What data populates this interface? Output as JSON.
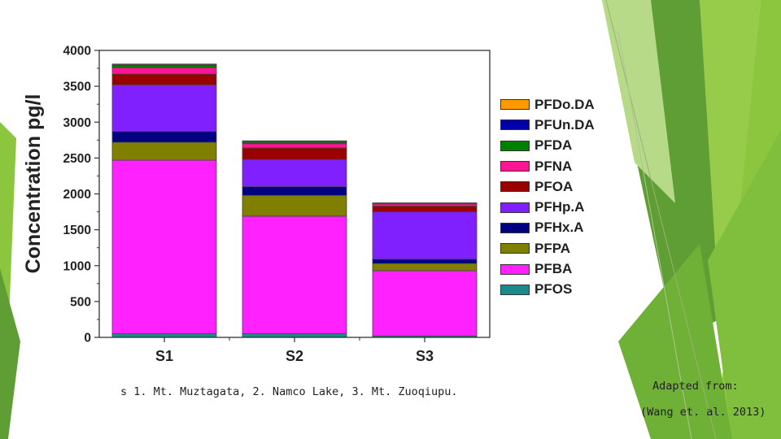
{
  "caption": "s 1. Mt. Muztagata, 2. Namco Lake, 3. Mt. Zuoqiupu.",
  "credit": {
    "label": "Adapted from:",
    "citation": "(Wang et. al. 2013)"
  },
  "colors": {
    "green_dark": "#5e9a2e",
    "green_mid": "#7dba3a",
    "green_light": "#a9d36a"
  },
  "chart_data": {
    "type": "bar",
    "stacked": true,
    "title": "",
    "xlabel": "",
    "ylabel": "Concentration pg/l",
    "ylim": [
      0,
      4000
    ],
    "yticks": [
      0,
      500,
      1000,
      1500,
      2000,
      2500,
      3000,
      3500,
      4000
    ],
    "grid": false,
    "legend_position": "right",
    "categories": [
      "S1",
      "S2",
      "S3"
    ],
    "series": [
      {
        "name": "PFOS",
        "color": "#1a8a8a",
        "values": [
          50,
          50,
          20
        ]
      },
      {
        "name": "PFBA",
        "color": "#ff22ff",
        "values": [
          2420,
          1640,
          910
        ]
      },
      {
        "name": "PFPA",
        "color": "#808000",
        "values": [
          250,
          290,
          100
        ]
      },
      {
        "name": "PFHx.A",
        "color": "#000080",
        "values": [
          150,
          120,
          60
        ]
      },
      {
        "name": "PFHp.A",
        "color": "#8020ff",
        "values": [
          650,
          380,
          660
        ]
      },
      {
        "name": "PFOA",
        "color": "#990000",
        "values": [
          150,
          160,
          80
        ]
      },
      {
        "name": "PFNA",
        "color": "#ff1493",
        "values": [
          90,
          60,
          30
        ]
      },
      {
        "name": "PFDA",
        "color": "#008000",
        "values": [
          30,
          20,
          5
        ]
      },
      {
        "name": "PFUn.DA",
        "color": "#0000aa",
        "values": [
          10,
          10,
          5
        ]
      },
      {
        "name": "PFDo.DA",
        "color": "#ff9900",
        "values": [
          10,
          10,
          5
        ]
      }
    ],
    "legend_order": [
      "PFDo.DA",
      "PFUn.DA",
      "PFDA",
      "PFNA",
      "PFOA",
      "PFHp.A",
      "PFHx.A",
      "PFPA",
      "PFBA",
      "PFOS"
    ]
  }
}
